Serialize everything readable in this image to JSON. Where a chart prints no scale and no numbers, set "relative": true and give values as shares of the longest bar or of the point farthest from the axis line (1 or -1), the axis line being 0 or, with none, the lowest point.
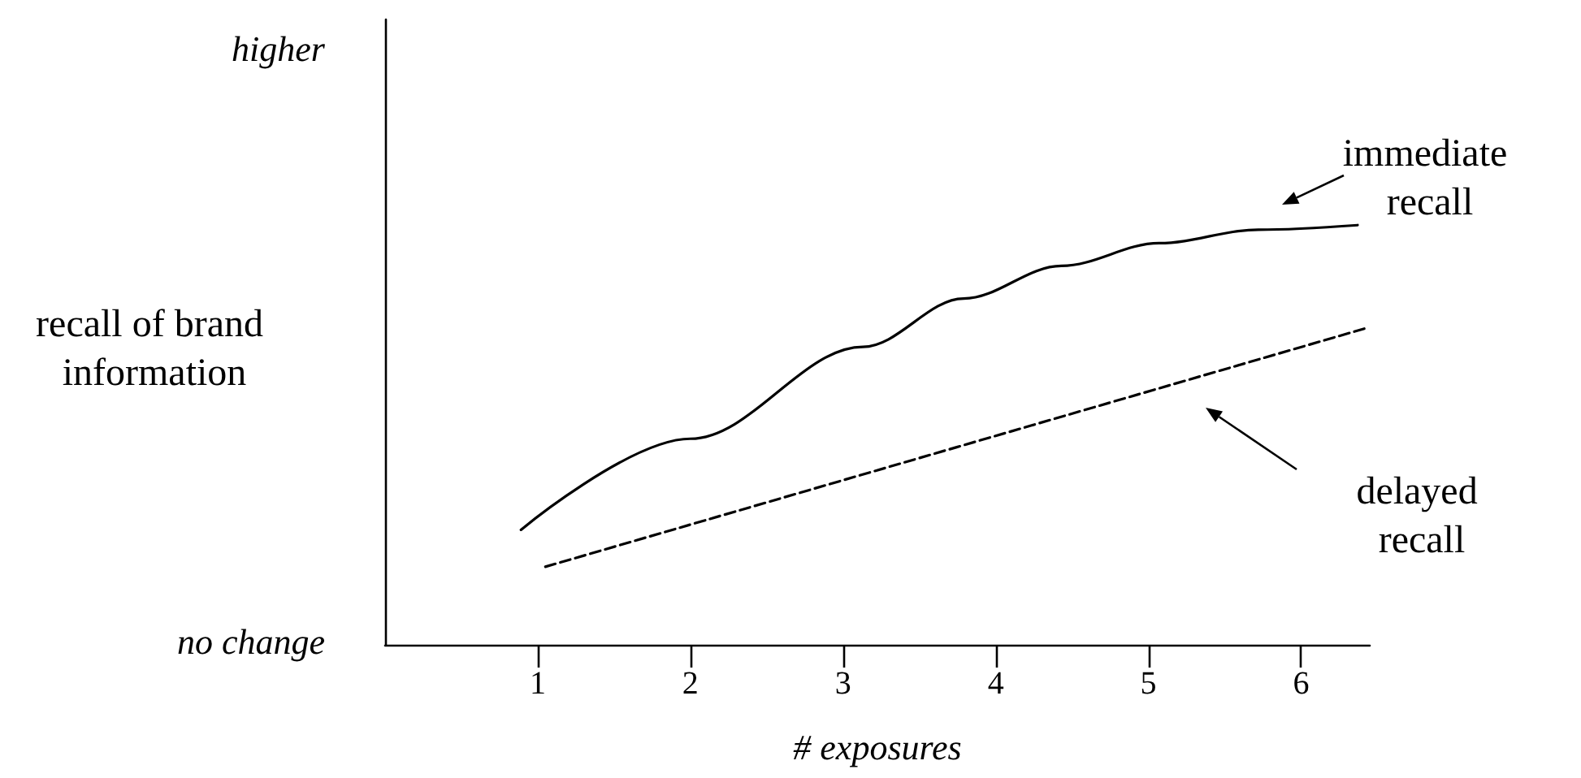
{
  "chart_data": {
    "type": "line",
    "relative": true,
    "xlabel": "# exposures",
    "ylabel": "recall of brand information",
    "xlim": [
      0,
      6.45
    ],
    "xticks": [
      1,
      2,
      3,
      4,
      5,
      6
    ],
    "marker": "none",
    "series": [
      {
        "color": "#000000",
        "line_style": "solid",
        "x": [
          0.89,
          2,
          3.13,
          3.79,
          4.43,
          5.07,
          5.72,
          6.37
        ],
        "values": [
          0.274,
          0.491,
          0.71,
          0.825,
          0.903,
          0.957,
          0.989,
          1
        ]
      },
      {
        "color": "#000000",
        "line_style": "dashed",
        "x": [
          1.05,
          6.43
        ],
        "values": [
          0.186,
          0.755
        ]
      }
    ],
    "annotations": [
      "higher",
      "no change",
      "immediate recall",
      "delayed recall"
    ]
  }
}
